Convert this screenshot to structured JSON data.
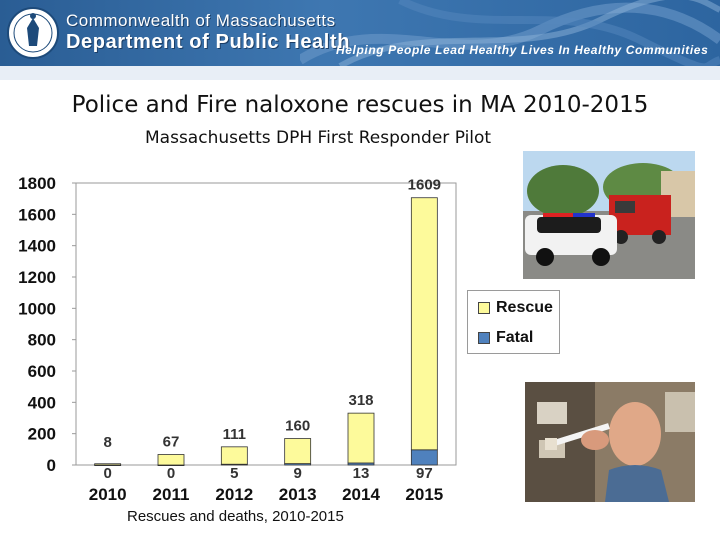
{
  "header": {
    "agency_line1": "Commonwealth of Massachusetts",
    "agency_line2": "Department of Public Health",
    "tagline": "Helping People Lead Healthy Lives In Healthy Communities"
  },
  "slide": {
    "title": "Police and Fire naloxone rescues in MA 2010-2015",
    "subtitle": "Massachusetts DPH First Responder Pilot",
    "caption": "Rescues and deaths, 2010-2015"
  },
  "colors": {
    "rescue": "#fdfa9b",
    "fatal": "#4f81bd",
    "banner": "#2f68a3"
  },
  "chart_data": {
    "type": "bar",
    "stacked": true,
    "categories": [
      "2010",
      "2011",
      "2012",
      "2013",
      "2014",
      "2015"
    ],
    "series": [
      {
        "name": "Fatal",
        "values": [
          0,
          0,
          5,
          9,
          13,
          97
        ]
      },
      {
        "name": "Rescue",
        "values": [
          8,
          67,
          111,
          160,
          318,
          1609
        ]
      }
    ],
    "ylim": [
      0,
      1800
    ],
    "yticks": [
      0,
      200,
      400,
      600,
      800,
      1000,
      1200,
      1400,
      1600,
      1800
    ],
    "xlabel": "",
    "ylabel": "",
    "legend_position": "right",
    "grid": false
  },
  "photos": {
    "top": "police-and-fire-vehicles-photo",
    "bottom": "man-holding-naloxone-syringe-photo"
  }
}
